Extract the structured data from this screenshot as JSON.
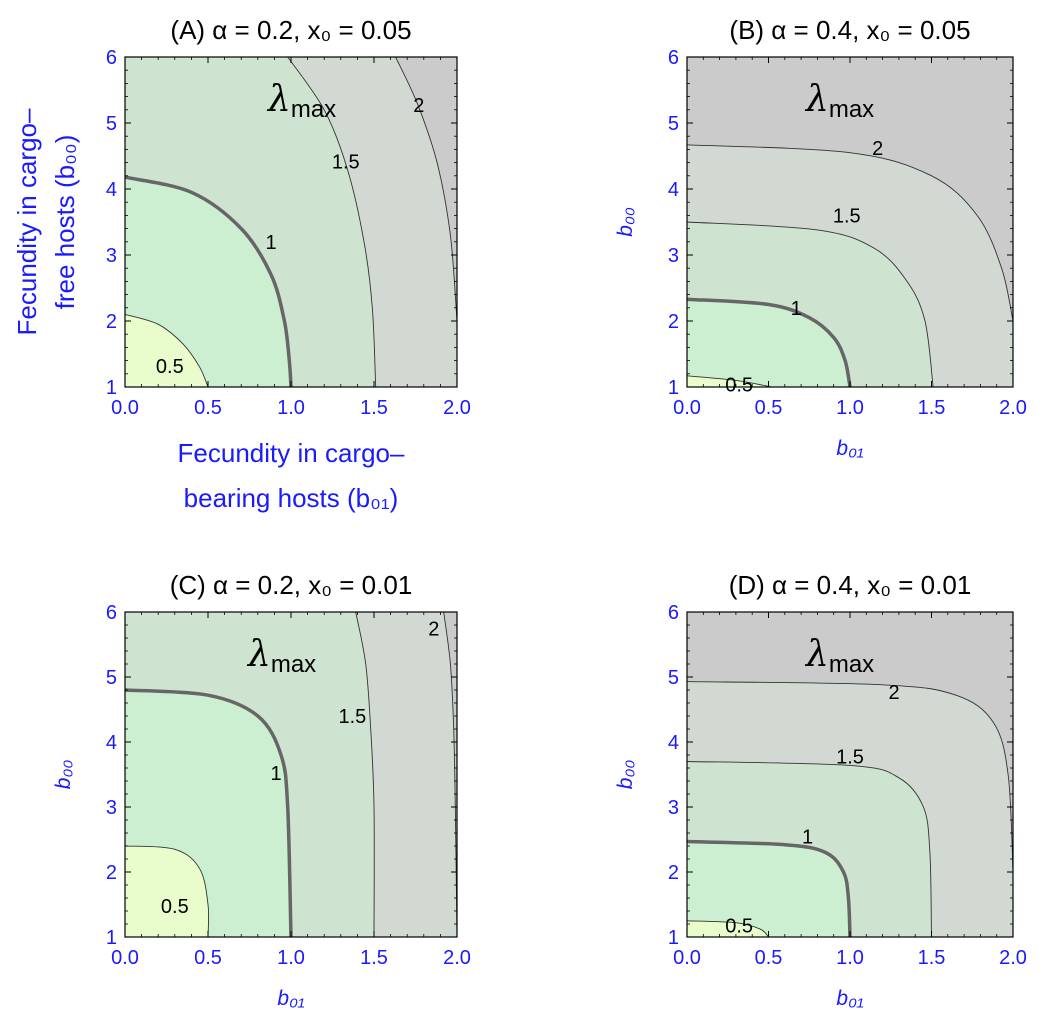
{
  "figure": {
    "common": {
      "contour_symbol": "λ",
      "contour_symbol_sub": "max",
      "x_ticks": [
        "0.0",
        "0.5",
        "1.0",
        "1.5",
        "2.0"
      ],
      "y_ticks": [
        "1",
        "2",
        "3",
        "4",
        "5",
        "6"
      ],
      "colors": {
        "below_0_5": "#e8fccc",
        "0_5_to_1": "#cbefd0",
        "1_to_1_5": "#cee3d0",
        "1_5_to_2": "#d1d9d2",
        "above_2": "#cbcbcb",
        "axis_text": "#1a1aff",
        "contour_thin": "#333333",
        "contour_thick": "#666666"
      }
    },
    "panels": [
      {
        "title": "(A) α = 0.2, x₀ = 0.05",
        "xlabel_line1": "Fecundity in cargo–",
        "xlabel_line2": "bearing hosts (b₀₁)",
        "ylabel_line1": "Fecundity in cargo–",
        "ylabel_line2": "free hosts (b₀₀)",
        "contour_labels": [
          "0.5",
          "1",
          "1.5",
          "2"
        ]
      },
      {
        "title": "(B) α = 0.4, x₀ = 0.05",
        "xlabel": "b₀₁",
        "ylabel": "b₀₀",
        "contour_labels": [
          "0.5",
          "1",
          "1.5",
          "2"
        ]
      },
      {
        "title": "(C) α = 0.2, x₀ = 0.01",
        "xlabel": "b₀₁",
        "ylabel": "b₀₀",
        "contour_labels": [
          "0.5",
          "1",
          "1.5",
          "2"
        ]
      },
      {
        "title": "(D) α = 0.4, x₀ = 0.01",
        "xlabel": "b₀₁",
        "ylabel": "b₀₀",
        "contour_labels": [
          "0.5",
          "1",
          "1.5",
          "2"
        ]
      }
    ]
  },
  "chart_data": [
    {
      "type": "heatmap",
      "title": "(A) α = 0.2, x₀ = 0.05",
      "xlabel": "Fecundity in cargo–bearing hosts (b₀₁)",
      "ylabel": "Fecundity in cargo–free hosts (b₀₀)",
      "xlim": [
        0,
        2
      ],
      "ylim": [
        1,
        6
      ],
      "legend": "none",
      "contours": [
        {
          "level": 0.5,
          "label": "0.5",
          "label_pos": [
            0.27,
            1.32
          ],
          "points": [
            [
              0,
              2.1
            ],
            [
              0.2,
              1.95
            ],
            [
              0.35,
              1.65
            ],
            [
              0.45,
              1.3
            ],
            [
              0.5,
              1.0
            ]
          ]
        },
        {
          "level": 1,
          "label": "1",
          "thick": true,
          "label_pos": [
            0.88,
            3.2
          ],
          "points": [
            [
              0,
              4.18
            ],
            [
              0.4,
              3.95
            ],
            [
              0.7,
              3.4
            ],
            [
              0.88,
              2.7
            ],
            [
              0.96,
              2.0
            ],
            [
              0.99,
              1.4
            ],
            [
              1.0,
              1.0
            ]
          ]
        },
        {
          "level": 1.5,
          "label": "1.5",
          "label_pos": [
            1.33,
            4.42
          ],
          "points": [
            [
              0.98,
              6.0
            ],
            [
              1.2,
              5.2
            ],
            [
              1.34,
              4.3
            ],
            [
              1.44,
              3.2
            ],
            [
              1.49,
              2.2
            ],
            [
              1.51,
              1.0
            ]
          ]
        },
        {
          "level": 2,
          "label": "2",
          "label_pos": [
            1.77,
            5.27
          ],
          "points": [
            [
              1.63,
              6.0
            ],
            [
              1.76,
              5.3
            ],
            [
              1.88,
              4.4
            ],
            [
              1.96,
              3.3
            ],
            [
              2.0,
              2.0
            ]
          ]
        }
      ]
    },
    {
      "type": "heatmap",
      "title": "(B) α = 0.4, x₀ = 0.05",
      "xlabel": "b₀₁",
      "ylabel": "b₀₀",
      "xlim": [
        0,
        2
      ],
      "ylim": [
        1,
        6
      ],
      "legend": "none",
      "contours": [
        {
          "level": 0.5,
          "label": "0.5",
          "label_pos": [
            0.32,
            1.04
          ],
          "points": [
            [
              0,
              1.17
            ],
            [
              0.3,
              1.1
            ],
            [
              0.52,
              1.0
            ]
          ]
        },
        {
          "level": 1,
          "label": "1",
          "thick": true,
          "label_pos": [
            0.67,
            2.2
          ],
          "points": [
            [
              0,
              2.33
            ],
            [
              0.5,
              2.25
            ],
            [
              0.75,
              2.05
            ],
            [
              0.9,
              1.75
            ],
            [
              0.97,
              1.4
            ],
            [
              1.0,
              1.0
            ]
          ]
        },
        {
          "level": 1.5,
          "label": "1.5",
          "label_pos": [
            0.98,
            3.6
          ],
          "points": [
            [
              0,
              3.5
            ],
            [
              0.8,
              3.38
            ],
            [
              1.15,
              3.1
            ],
            [
              1.35,
              2.6
            ],
            [
              1.46,
              2.0
            ],
            [
              1.51,
              1.0
            ]
          ]
        },
        {
          "level": 2,
          "label": "2",
          "label_pos": [
            1.17,
            4.62
          ],
          "points": [
            [
              0,
              4.67
            ],
            [
              1.0,
              4.55
            ],
            [
              1.5,
              4.2
            ],
            [
              1.78,
              3.6
            ],
            [
              1.93,
              2.8
            ],
            [
              2.0,
              2.0
            ]
          ]
        }
      ]
    },
    {
      "type": "heatmap",
      "title": "(C) α = 0.2, x₀ = 0.01",
      "xlabel": "b₀₁",
      "ylabel": "b₀₀",
      "xlim": [
        0,
        2
      ],
      "ylim": [
        1,
        6
      ],
      "legend": "none",
      "contours": [
        {
          "level": 0.5,
          "label": "0.5",
          "label_pos": [
            0.3,
            1.48
          ],
          "points": [
            [
              0,
              2.4
            ],
            [
              0.3,
              2.35
            ],
            [
              0.45,
              2.05
            ],
            [
              0.5,
              1.5
            ],
            [
              0.5,
              1.0
            ]
          ]
        },
        {
          "level": 1,
          "label": "1",
          "thick": true,
          "label_pos": [
            0.91,
            3.52
          ],
          "points": [
            [
              0,
              4.8
            ],
            [
              0.5,
              4.72
            ],
            [
              0.8,
              4.4
            ],
            [
              0.94,
              3.8
            ],
            [
              0.98,
              3.0
            ],
            [
              1.0,
              1.0
            ]
          ]
        },
        {
          "level": 1.5,
          "label": "1.5",
          "label_pos": [
            1.37,
            4.4
          ],
          "points": [
            [
              1.39,
              6.0
            ],
            [
              1.45,
              5.2
            ],
            [
              1.48,
              4.2
            ],
            [
              1.5,
              3.0
            ],
            [
              1.5,
              1.0
            ]
          ]
        },
        {
          "level": 2,
          "label": "2",
          "label_pos": [
            1.86,
            5.75
          ],
          "points": [
            [
              1.92,
              6.0
            ],
            [
              1.96,
              5.2
            ],
            [
              1.98,
              4.2
            ],
            [
              1.99,
              3.0
            ],
            [
              2.0,
              1.0
            ]
          ]
        }
      ]
    },
    {
      "type": "heatmap",
      "title": "(D) α = 0.4, x₀ = 0.01",
      "xlabel": "b₀₁",
      "ylabel": "b₀₀",
      "xlim": [
        0,
        2
      ],
      "ylim": [
        1,
        6
      ],
      "legend": "none",
      "contours": [
        {
          "level": 0.5,
          "label": "0.5",
          "label_pos": [
            0.32,
            1.18
          ],
          "points": [
            [
              0,
              1.25
            ],
            [
              0.3,
              1.22
            ],
            [
              0.45,
              1.12
            ],
            [
              0.5,
              1.0
            ]
          ]
        },
        {
          "level": 1,
          "label": "1",
          "thick": true,
          "label_pos": [
            0.74,
            2.55
          ],
          "points": [
            [
              0,
              2.47
            ],
            [
              0.6,
              2.42
            ],
            [
              0.85,
              2.3
            ],
            [
              0.96,
              2.0
            ],
            [
              0.99,
              1.6
            ],
            [
              1.0,
              1.0
            ]
          ]
        },
        {
          "level": 1.5,
          "label": "1.5",
          "label_pos": [
            1.0,
            3.78
          ],
          "points": [
            [
              0,
              3.7
            ],
            [
              1.0,
              3.64
            ],
            [
              1.3,
              3.45
            ],
            [
              1.45,
              3.0
            ],
            [
              1.49,
              2.3
            ],
            [
              1.5,
              1.0
            ]
          ]
        },
        {
          "level": 2,
          "label": "2",
          "label_pos": [
            1.27,
            4.77
          ],
          "points": [
            [
              0,
              4.93
            ],
            [
              1.2,
              4.88
            ],
            [
              1.65,
              4.72
            ],
            [
              1.88,
              4.3
            ],
            [
              1.97,
              3.5
            ],
            [
              2.0,
              2.0
            ]
          ]
        }
      ]
    }
  ]
}
